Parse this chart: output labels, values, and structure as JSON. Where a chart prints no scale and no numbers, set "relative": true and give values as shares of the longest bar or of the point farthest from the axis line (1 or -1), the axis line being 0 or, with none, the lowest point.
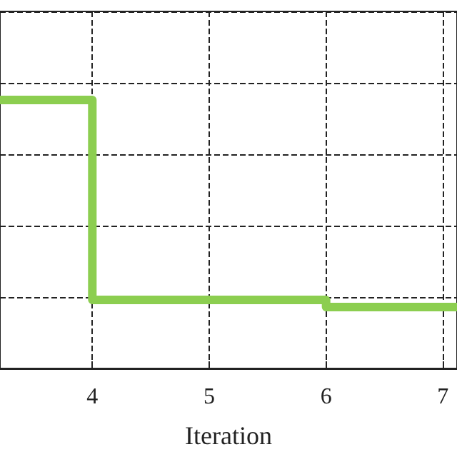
{
  "chart_data": {
    "type": "step",
    "xlabel": "Iteration",
    "relative": true,
    "x": [
      3.21,
      4,
      6,
      7.12
    ],
    "series": [
      {
        "color": "#8cce50",
        "values": [
          1,
          0.255,
          0.229,
          0.229
        ]
      }
    ],
    "xlim": [
      3.21,
      7.12
    ],
    "xticks": [
      4,
      5,
      6,
      7
    ],
    "grid": true,
    "marker": "none",
    "line_style": "solid"
  }
}
